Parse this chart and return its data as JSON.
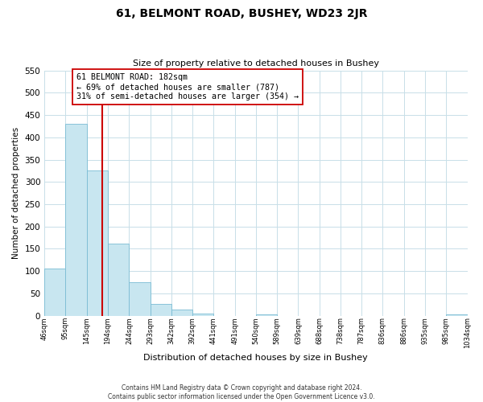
{
  "title": "61, BELMONT ROAD, BUSHEY, WD23 2JR",
  "subtitle": "Size of property relative to detached houses in Bushey",
  "xlabel": "Distribution of detached houses by size in Bushey",
  "ylabel": "Number of detached properties",
  "bar_color": "#c8e6f0",
  "bar_edge_color": "#7abcd4",
  "background_color": "#ffffff",
  "grid_color": "#c8dfe8",
  "property_line_x": 182,
  "property_line_color": "#cc0000",
  "annotation_text": "61 BELMONT ROAD: 182sqm\n← 69% of detached houses are smaller (787)\n31% of semi-detached houses are larger (354) →",
  "annotation_box_color": "#ffffff",
  "annotation_box_edge": "#cc0000",
  "bin_edges": [
    46,
    95,
    145,
    194,
    244,
    293,
    342,
    392,
    441,
    491,
    540,
    589,
    639,
    688,
    738,
    787,
    836,
    886,
    935,
    985,
    1034
  ],
  "bin_counts": [
    105,
    430,
    325,
    162,
    75,
    27,
    13,
    5,
    0,
    0,
    3,
    0,
    0,
    0,
    0,
    0,
    0,
    0,
    0,
    3
  ],
  "ylim": [
    0,
    550
  ],
  "yticks": [
    0,
    50,
    100,
    150,
    200,
    250,
    300,
    350,
    400,
    450,
    500,
    550
  ],
  "footer_text": "Contains HM Land Registry data © Crown copyright and database right 2024.\nContains public sector information licensed under the Open Government Licence v3.0.",
  "tick_labels": [
    "46sqm",
    "95sqm",
    "145sqm",
    "194sqm",
    "244sqm",
    "293sqm",
    "342sqm",
    "392sqm",
    "441sqm",
    "491sqm",
    "540sqm",
    "589sqm",
    "639sqm",
    "688sqm",
    "738sqm",
    "787sqm",
    "836sqm",
    "886sqm",
    "935sqm",
    "985sqm",
    "1034sqm"
  ]
}
